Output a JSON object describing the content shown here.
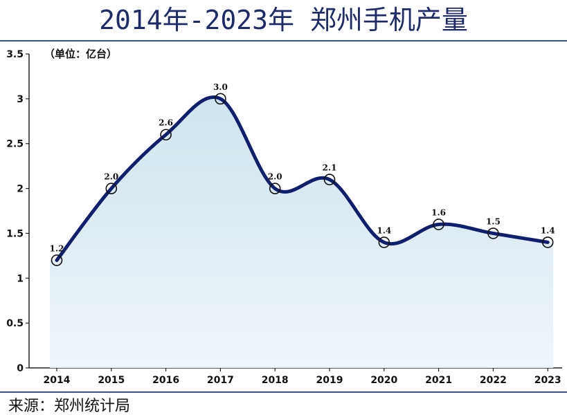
{
  "title": "2014年-2023年 郑州手机产量",
  "source": "来源：郑州统计局",
  "colors": {
    "line": "#0d1f6e",
    "fill": "#d9eaf2",
    "title": "#1f2a6b"
  },
  "chart_data": {
    "type": "line",
    "categories": [
      "2014",
      "2015",
      "2016",
      "2017",
      "2018",
      "2019",
      "2020",
      "2021",
      "2022",
      "2023"
    ],
    "values": [
      1.2,
      2.0,
      2.6,
      3.0,
      2.0,
      2.1,
      1.4,
      1.6,
      1.5,
      1.4
    ],
    "data_labels": [
      "1.2",
      "2.0",
      "2.6",
      "3.0",
      "2.0",
      "2.1",
      "1.4",
      "1.6",
      "1.5",
      "1.4"
    ],
    "unit_label": "（单位：亿台）",
    "ylim": [
      0,
      3.5
    ],
    "yticks": [
      "0",
      "0.5",
      "1",
      "1.5",
      "2",
      "2.5",
      "3",
      "3.5"
    ],
    "ytick_values": [
      0,
      0.5,
      1,
      1.5,
      2,
      2.5,
      3,
      3.5
    ],
    "grid": false,
    "area_fill": true,
    "markers": "hollow-circle"
  }
}
